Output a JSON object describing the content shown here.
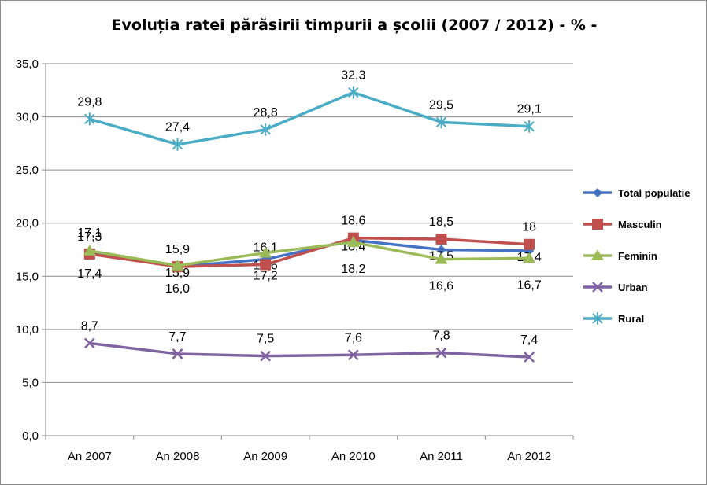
{
  "chart_data": {
    "type": "line",
    "title": "Evoluția ratei părăsirii timpurii a școlii (2007 / 2012) - % -",
    "categories": [
      "An 2007",
      "An 2008",
      "An 2009",
      "An 2010",
      "An 2011",
      "An 2012"
    ],
    "ylim": [
      0,
      35
    ],
    "yticks": [
      "0,0",
      "5,0",
      "10,0",
      "15,0",
      "20,0",
      "25,0",
      "30,0",
      "35,0"
    ],
    "grid": true,
    "legend_position": "right",
    "series": [
      {
        "name": "Total populatie",
        "color": "#4572c4",
        "marker": "diamond",
        "values": [
          17.3,
          15.9,
          16.6,
          18.4,
          17.5,
          17.4
        ],
        "labels": [
          "17,3",
          "15,9",
          "16,6",
          "18,4",
          "17,5",
          "17,4"
        ]
      },
      {
        "name": "Masculin",
        "color": "#c0504d",
        "marker": "square",
        "values": [
          17.1,
          15.9,
          16.1,
          18.6,
          18.5,
          18.0
        ],
        "labels": [
          "17,1",
          "15,9",
          "16,1",
          "18,6",
          "18,5",
          "18"
        ]
      },
      {
        "name": "Feminin",
        "color": "#9bbb59",
        "marker": "triangle",
        "values": [
          17.4,
          16.0,
          17.2,
          18.2,
          16.6,
          16.7
        ],
        "labels": [
          "17,4",
          "16,0",
          "17,2",
          "18,2",
          "16,6",
          "16,7"
        ]
      },
      {
        "name": "Urban",
        "color": "#8064a2",
        "marker": "x",
        "values": [
          8.7,
          7.7,
          7.5,
          7.6,
          7.8,
          7.4
        ],
        "labels": [
          "8,7",
          "7,7",
          "7,5",
          "7,6",
          "7,8",
          "7,4"
        ]
      },
      {
        "name": "Rural",
        "color": "#4bacc6",
        "marker": "star",
        "values": [
          29.8,
          27.4,
          28.8,
          32.3,
          29.5,
          29.1
        ],
        "labels": [
          "29,8",
          "27,4",
          "28,8",
          "32,3",
          "29,5",
          "29,1"
        ]
      }
    ]
  }
}
